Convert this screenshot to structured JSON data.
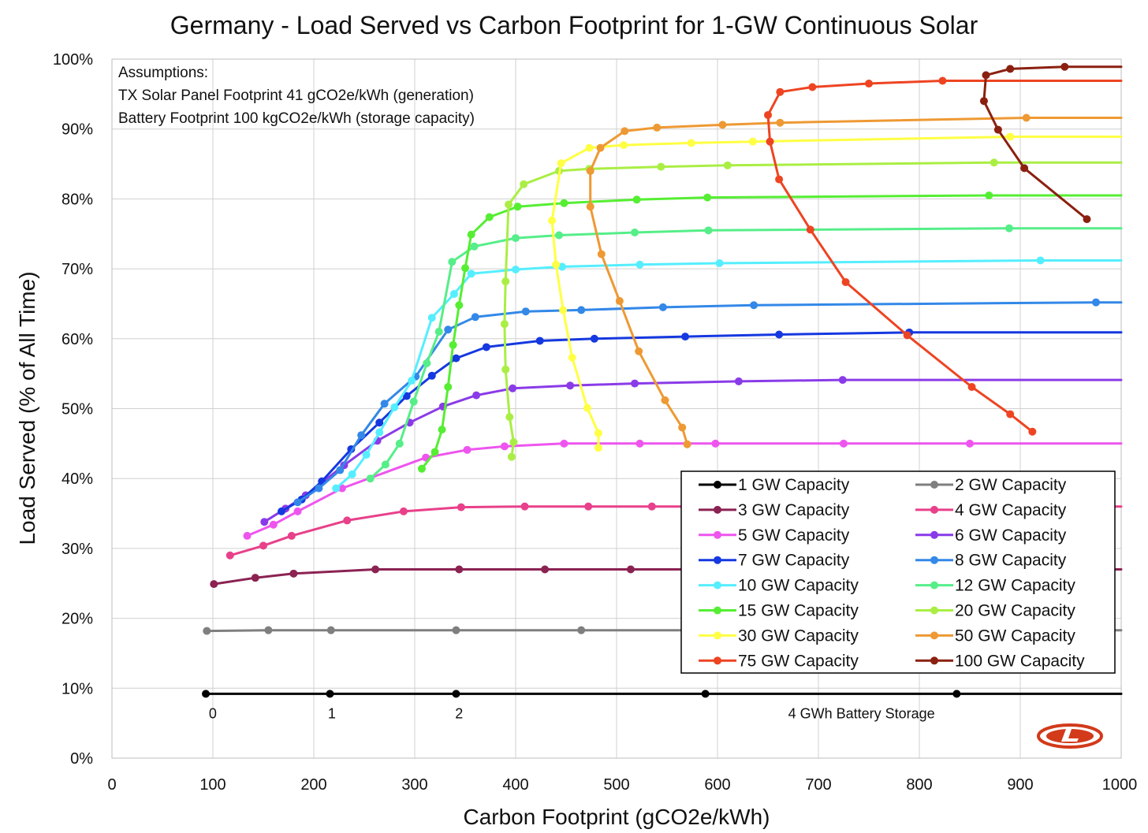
{
  "chart_data": {
    "type": "line",
    "title": "Germany - Load Served vs Carbon Footprint for 1-GW Continuous Solar",
    "xlabel": "Carbon Footprint (gCO2e/kWh)",
    "ylabel": "Load Served (% of All Time)",
    "xlim": [
      0,
      1000
    ],
    "ylim": [
      0,
      100
    ],
    "x_ticks": [
      "0",
      "100",
      "200",
      "300",
      "400",
      "500",
      "600",
      "700",
      "800",
      "900",
      "1000"
    ],
    "y_ticks": [
      "0%",
      "10%",
      "20%",
      "30%",
      "40%",
      "50%",
      "60%",
      "70%",
      "80%",
      "90%",
      "100%"
    ],
    "assumptions": [
      "Assumptions:",
      "TX Solar Panel Footprint 41 gCO2e/kWh (generation)",
      "Battery Footprint 100 kgCO2e/kWh (storage capacity)"
    ],
    "battery_labels": [
      {
        "text": "0",
        "x": 96
      },
      {
        "text": "1",
        "x": 214
      },
      {
        "text": "2",
        "x": 340
      },
      {
        "text": "4 GWh Battery Storage",
        "x": 670
      }
    ],
    "battery_label_y": 5.7,
    "legend_position": "bottom-right",
    "series": [
      {
        "name": "1 GW Capacity",
        "color": "#000000",
        "x": [
          93,
          216,
          341,
          588,
          837
        ],
        "y": [
          9.2,
          9.2,
          9.2,
          9.2,
          9.2
        ],
        "extend_to": 1000
      },
      {
        "name": "2 GW Capacity",
        "color": "#7f7f7f",
        "x": [
          94,
          155,
          217,
          341,
          465,
          712
        ],
        "y": [
          18.2,
          18.3,
          18.3,
          18.3,
          18.3,
          18.3
        ],
        "extend_to": 1000
      },
      {
        "name": "3 GW Capacity",
        "color": "#8b2252",
        "x": [
          101,
          142,
          180,
          261,
          344,
          429,
          514
        ],
        "y": [
          24.9,
          25.8,
          26.4,
          27.0,
          27.0,
          27.0,
          27.0
        ],
        "extend_to": 1000
      },
      {
        "name": "4 GW Capacity",
        "color": "#e8408a",
        "x": [
          117,
          150,
          178,
          233,
          289,
          346,
          409,
          472,
          535
        ],
        "y": [
          29.0,
          30.4,
          31.8,
          34.0,
          35.3,
          35.9,
          36.0,
          36.0,
          36.0
        ],
        "extend_to": 1000
      },
      {
        "name": "5 GW Capacity",
        "color": "#ee55ee",
        "x": [
          134,
          160,
          184,
          228,
          311,
          352,
          389,
          448,
          523,
          598,
          725,
          850
        ],
        "y": [
          31.8,
          33.4,
          35.3,
          38.6,
          43.0,
          44.1,
          44.6,
          45.0,
          45.0,
          45.0,
          45.0,
          45.0
        ],
        "extend_to": 1000
      },
      {
        "name": "6 GW Capacity",
        "color": "#8a3be8",
        "x": [
          151,
          172,
          192,
          230,
          263,
          295,
          328,
          361,
          397,
          454,
          518,
          621,
          724
        ],
        "y": [
          33.8,
          35.7,
          37.6,
          41.9,
          45.4,
          48.0,
          50.3,
          51.9,
          52.9,
          53.3,
          53.6,
          53.9,
          54.1
        ],
        "extend_to": 1000
      },
      {
        "name": "7 GW Capacity",
        "color": "#1538e0",
        "x": [
          168,
          188,
          208,
          237,
          265,
          292,
          317,
          341,
          371,
          424,
          478,
          568,
          661,
          790
        ],
        "y": [
          35.3,
          37.0,
          39.6,
          44.2,
          48.0,
          51.8,
          54.7,
          57.2,
          58.8,
          59.7,
          60.0,
          60.3,
          60.6,
          60.9
        ],
        "extend_to": 1000
      },
      {
        "name": "8 GW Capacity",
        "color": "#3388e8",
        "x": [
          184,
          205,
          226,
          247,
          270,
          301,
          333,
          360,
          410,
          465,
          546,
          636,
          975
        ],
        "y": [
          36.6,
          38.6,
          41.2,
          46.2,
          50.7,
          54.6,
          61.3,
          63.1,
          63.9,
          64.1,
          64.5,
          64.8,
          65.2
        ],
        "extend_to": 1000
      },
      {
        "name": "10 GW Capacity",
        "color": "#55eeff",
        "x": [
          222,
          238,
          252,
          265,
          280,
          297,
          317,
          339,
          356,
          400,
          446,
          523,
          602,
          920
        ],
        "y": [
          38.6,
          40.6,
          43.4,
          46.6,
          50.2,
          54.0,
          63.0,
          66.4,
          69.3,
          69.9,
          70.3,
          70.6,
          70.8,
          71.2
        ],
        "extend_to": 1000
      },
      {
        "name": "12 GW Capacity",
        "color": "#55ee88",
        "x": [
          256,
          271,
          285,
          299,
          312,
          324,
          337,
          359,
          400,
          443,
          518,
          591,
          889
        ],
        "y": [
          40.0,
          42.0,
          45.0,
          51.0,
          56.5,
          61.0,
          71.0,
          73.2,
          74.4,
          74.8,
          75.2,
          75.5,
          75.8
        ],
        "extend_to": 1000
      },
      {
        "name": "15 GW Capacity",
        "color": "#55ee33",
        "x": [
          307,
          320,
          327,
          333,
          338,
          344,
          350,
          356,
          374,
          402,
          448,
          520,
          590,
          869
        ],
        "y": [
          41.4,
          43.8,
          47.0,
          53.1,
          59.1,
          64.8,
          70.1,
          74.9,
          77.4,
          78.9,
          79.4,
          79.9,
          80.2,
          80.5
        ],
        "extend_to": 1000
      },
      {
        "name": "20 GW Capacity",
        "color": "#aaee44",
        "x": [
          396,
          398,
          394,
          390,
          389,
          390,
          393,
          408,
          443,
          473,
          544,
          610,
          874
        ],
        "y": [
          43.1,
          45.2,
          48.8,
          55.6,
          62.1,
          68.2,
          79.2,
          82.1,
          84.0,
          84.3,
          84.6,
          84.8,
          85.2
        ],
        "extend_to": 1000
      },
      {
        "name": "30 GW Capacity",
        "color": "#ffff44",
        "x": [
          482,
          482,
          471,
          456,
          447,
          440,
          436,
          445,
          473,
          507,
          574,
          635,
          890
        ],
        "y": [
          44.4,
          46.5,
          50.1,
          57.3,
          64.1,
          70.6,
          76.9,
          85.1,
          87.3,
          87.7,
          88.0,
          88.2,
          88.9
        ],
        "extend_to": 1000
      },
      {
        "name": "50 GW Capacity",
        "color": "#ee9933",
        "x": [
          570,
          565,
          548,
          522,
          503,
          485,
          474,
          474,
          484,
          508,
          540,
          605,
          662,
          906
        ],
        "y": [
          44.9,
          47.3,
          51.2,
          58.2,
          65.4,
          72.1,
          78.9,
          84.0,
          87.3,
          89.7,
          90.2,
          90.6,
          90.9,
          91.6
        ],
        "extend_to": 1000
      },
      {
        "name": "75 GW Capacity",
        "color": "#ee4422",
        "x": [
          912,
          890,
          852,
          788,
          727,
          692,
          661,
          652,
          650,
          662,
          694,
          750,
          823
        ],
        "y": [
          46.7,
          49.2,
          53.1,
          60.5,
          68.1,
          75.6,
          82.8,
          88.2,
          92.0,
          95.3,
          96.0,
          96.5,
          96.9
        ],
        "extend_to": 1000
      },
      {
        "name": "100 GW Capacity",
        "color": "#8b2010",
        "x": [
          966,
          904,
          878,
          864,
          866,
          890,
          944
        ],
        "y": [
          77.1,
          84.4,
          89.9,
          94.0,
          97.7,
          98.6,
          98.9
        ],
        "extend_to": 1000
      }
    ]
  }
}
